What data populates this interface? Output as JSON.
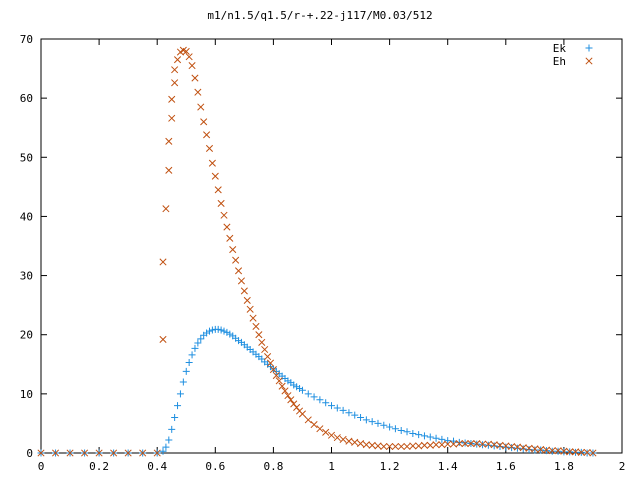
{
  "chart_data": {
    "type": "scatter",
    "title": "m1/n1.5/q1.5/r-+.22-j117/M0.03/512",
    "xlabel": "",
    "ylabel": "",
    "xlim": [
      0,
      2
    ],
    "ylim": [
      0,
      70
    ],
    "x_ticks": [
      "0",
      "0.2",
      "0.4",
      "0.6",
      "0.8",
      "1",
      "1.2",
      "1.4",
      "1.6",
      "1.8",
      "2"
    ],
    "y_ticks": [
      "0",
      "10",
      "20",
      "30",
      "40",
      "50",
      "60",
      "70"
    ],
    "grid": false,
    "legend_position": "top-right",
    "series": [
      {
        "name": "Ek",
        "marker": "plus",
        "color": "#1f8fe0",
        "points": [
          [
            0.0,
            0
          ],
          [
            0.05,
            0
          ],
          [
            0.1,
            0
          ],
          [
            0.15,
            0
          ],
          [
            0.2,
            0
          ],
          [
            0.25,
            0
          ],
          [
            0.3,
            0
          ],
          [
            0.35,
            0
          ],
          [
            0.4,
            0
          ],
          [
            0.42,
            0.3
          ],
          [
            0.43,
            1.0
          ],
          [
            0.44,
            2.2
          ],
          [
            0.45,
            4.0
          ],
          [
            0.46,
            6.0
          ],
          [
            0.47,
            8.0
          ],
          [
            0.48,
            10.0
          ],
          [
            0.49,
            12.0
          ],
          [
            0.5,
            13.8
          ],
          [
            0.51,
            15.3
          ],
          [
            0.52,
            16.6
          ],
          [
            0.53,
            17.7
          ],
          [
            0.54,
            18.6
          ],
          [
            0.55,
            19.3
          ],
          [
            0.56,
            19.9
          ],
          [
            0.57,
            20.3
          ],
          [
            0.58,
            20.6
          ],
          [
            0.59,
            20.8
          ],
          [
            0.6,
            20.9
          ],
          [
            0.61,
            20.9
          ],
          [
            0.62,
            20.8
          ],
          [
            0.63,
            20.6
          ],
          [
            0.64,
            20.4
          ],
          [
            0.65,
            20.1
          ],
          [
            0.66,
            19.8
          ],
          [
            0.67,
            19.4
          ],
          [
            0.68,
            19.0
          ],
          [
            0.69,
            18.7
          ],
          [
            0.7,
            18.3
          ],
          [
            0.71,
            17.9
          ],
          [
            0.72,
            17.5
          ],
          [
            0.73,
            17.1
          ],
          [
            0.74,
            16.7
          ],
          [
            0.75,
            16.3
          ],
          [
            0.76,
            15.9
          ],
          [
            0.77,
            15.4
          ],
          [
            0.78,
            15.0
          ],
          [
            0.79,
            14.6
          ],
          [
            0.8,
            14.2
          ],
          [
            0.81,
            13.8
          ],
          [
            0.82,
            13.4
          ],
          [
            0.83,
            13.0
          ],
          [
            0.84,
            12.6
          ],
          [
            0.85,
            12.2
          ],
          [
            0.86,
            11.9
          ],
          [
            0.87,
            11.5
          ],
          [
            0.88,
            11.2
          ],
          [
            0.89,
            10.9
          ],
          [
            0.9,
            10.6
          ],
          [
            0.92,
            10.0
          ],
          [
            0.94,
            9.5
          ],
          [
            0.96,
            9.0
          ],
          [
            0.98,
            8.5
          ],
          [
            1.0,
            8.0
          ],
          [
            1.02,
            7.6
          ],
          [
            1.04,
            7.2
          ],
          [
            1.06,
            6.8
          ],
          [
            1.08,
            6.4
          ],
          [
            1.1,
            6.0
          ],
          [
            1.12,
            5.6
          ],
          [
            1.14,
            5.3
          ],
          [
            1.16,
            5.0
          ],
          [
            1.18,
            4.7
          ],
          [
            1.2,
            4.4
          ],
          [
            1.22,
            4.1
          ],
          [
            1.24,
            3.8
          ],
          [
            1.26,
            3.6
          ],
          [
            1.28,
            3.3
          ],
          [
            1.3,
            3.1
          ],
          [
            1.32,
            2.9
          ],
          [
            1.34,
            2.7
          ],
          [
            1.36,
            2.5
          ],
          [
            1.38,
            2.3
          ],
          [
            1.4,
            2.1
          ],
          [
            1.42,
            2.0
          ],
          [
            1.44,
            1.8
          ],
          [
            1.46,
            1.7
          ],
          [
            1.48,
            1.6
          ],
          [
            1.5,
            1.5
          ],
          [
            1.52,
            1.4
          ],
          [
            1.54,
            1.3
          ],
          [
            1.56,
            1.2
          ],
          [
            1.58,
            1.1
          ],
          [
            1.6,
            1.0
          ],
          [
            1.62,
            0.9
          ],
          [
            1.64,
            0.8
          ],
          [
            1.66,
            0.7
          ],
          [
            1.68,
            0.6
          ],
          [
            1.7,
            0.5
          ],
          [
            1.72,
            0.5
          ],
          [
            1.74,
            0.4
          ],
          [
            1.76,
            0.3
          ],
          [
            1.78,
            0.3
          ],
          [
            1.8,
            0.2
          ],
          [
            1.82,
            0.2
          ],
          [
            1.84,
            0.1
          ],
          [
            1.86,
            0.1
          ],
          [
            1.88,
            0.0
          ],
          [
            1.9,
            0.0
          ]
        ]
      },
      {
        "name": "Eh",
        "marker": "cross",
        "color": "#c05010",
        "points": [
          [
            0.0,
            0
          ],
          [
            0.05,
            0
          ],
          [
            0.1,
            0
          ],
          [
            0.15,
            0
          ],
          [
            0.2,
            0
          ],
          [
            0.25,
            0
          ],
          [
            0.3,
            0
          ],
          [
            0.35,
            0
          ],
          [
            0.4,
            0
          ],
          [
            0.42,
            19.2
          ],
          [
            0.42,
            32.3
          ],
          [
            0.43,
            41.3
          ],
          [
            0.44,
            47.8
          ],
          [
            0.44,
            52.7
          ],
          [
            0.45,
            56.6
          ],
          [
            0.45,
            59.8
          ],
          [
            0.46,
            62.6
          ],
          [
            0.46,
            64.8
          ],
          [
            0.47,
            66.5
          ],
          [
            0.48,
            67.8
          ],
          [
            0.49,
            68.1
          ],
          [
            0.5,
            67.9
          ],
          [
            0.51,
            67.0
          ],
          [
            0.52,
            65.5
          ],
          [
            0.53,
            63.4
          ],
          [
            0.54,
            61.0
          ],
          [
            0.55,
            58.5
          ],
          [
            0.56,
            56.0
          ],
          [
            0.57,
            53.8
          ],
          [
            0.58,
            51.5
          ],
          [
            0.59,
            49.0
          ],
          [
            0.6,
            46.8
          ],
          [
            0.61,
            44.5
          ],
          [
            0.62,
            42.2
          ],
          [
            0.63,
            40.2
          ],
          [
            0.64,
            38.2
          ],
          [
            0.65,
            36.3
          ],
          [
            0.66,
            34.4
          ],
          [
            0.67,
            32.6
          ],
          [
            0.68,
            30.8
          ],
          [
            0.69,
            29.1
          ],
          [
            0.7,
            27.4
          ],
          [
            0.71,
            25.8
          ],
          [
            0.72,
            24.3
          ],
          [
            0.73,
            22.8
          ],
          [
            0.74,
            21.4
          ],
          [
            0.75,
            20.0
          ],
          [
            0.76,
            18.7
          ],
          [
            0.77,
            17.5
          ],
          [
            0.78,
            16.3
          ],
          [
            0.79,
            15.2
          ],
          [
            0.8,
            14.1
          ],
          [
            0.81,
            13.1
          ],
          [
            0.82,
            12.2
          ],
          [
            0.83,
            11.3
          ],
          [
            0.84,
            10.5
          ],
          [
            0.85,
            9.7
          ],
          [
            0.86,
            9.0
          ],
          [
            0.87,
            8.3
          ],
          [
            0.88,
            7.7
          ],
          [
            0.89,
            7.1
          ],
          [
            0.9,
            6.6
          ],
          [
            0.92,
            5.6
          ],
          [
            0.94,
            4.8
          ],
          [
            0.96,
            4.1
          ],
          [
            0.98,
            3.5
          ],
          [
            1.0,
            3.0
          ],
          [
            1.02,
            2.6
          ],
          [
            1.04,
            2.3
          ],
          [
            1.06,
            2.0
          ],
          [
            1.08,
            1.8
          ],
          [
            1.1,
            1.6
          ],
          [
            1.12,
            1.4
          ],
          [
            1.14,
            1.3
          ],
          [
            1.16,
            1.2
          ],
          [
            1.18,
            1.1
          ],
          [
            1.2,
            1.1
          ],
          [
            1.22,
            1.1
          ],
          [
            1.24,
            1.1
          ],
          [
            1.26,
            1.1
          ],
          [
            1.28,
            1.2
          ],
          [
            1.3,
            1.2
          ],
          [
            1.32,
            1.3
          ],
          [
            1.34,
            1.3
          ],
          [
            1.36,
            1.4
          ],
          [
            1.38,
            1.4
          ],
          [
            1.4,
            1.5
          ],
          [
            1.42,
            1.5
          ],
          [
            1.44,
            1.6
          ],
          [
            1.46,
            1.6
          ],
          [
            1.48,
            1.6
          ],
          [
            1.5,
            1.6
          ],
          [
            1.52,
            1.5
          ],
          [
            1.54,
            1.5
          ],
          [
            1.56,
            1.4
          ],
          [
            1.58,
            1.3
          ],
          [
            1.6,
            1.2
          ],
          [
            1.62,
            1.1
          ],
          [
            1.64,
            1.0
          ],
          [
            1.66,
            0.9
          ],
          [
            1.68,
            0.8
          ],
          [
            1.7,
            0.7
          ],
          [
            1.72,
            0.6
          ],
          [
            1.74,
            0.5
          ],
          [
            1.76,
            0.4
          ],
          [
            1.78,
            0.4
          ],
          [
            1.8,
            0.3
          ],
          [
            1.82,
            0.2
          ],
          [
            1.84,
            0.2
          ],
          [
            1.86,
            0.1
          ],
          [
            1.88,
            0.1
          ],
          [
            1.9,
            0.0
          ]
        ]
      }
    ]
  }
}
